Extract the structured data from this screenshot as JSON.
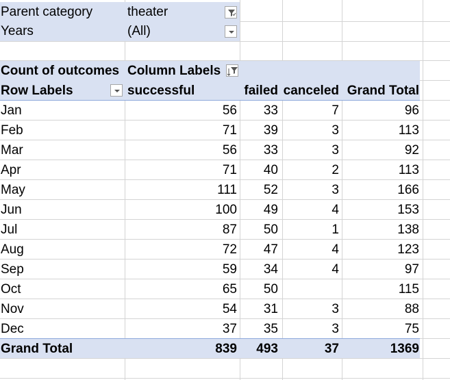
{
  "filters": [
    {
      "label": "Parent category",
      "value": "theater",
      "icon": "filter-applied-icon"
    },
    {
      "label": "Years",
      "value": "(All)",
      "icon": "dropdown-icon"
    }
  ],
  "pivot": {
    "corner_label": "Count of outcomes",
    "column_labels": "Column Labels",
    "row_labels": "Row Labels",
    "columns": [
      "successful",
      "failed",
      "canceled",
      "Grand Total"
    ],
    "rows": [
      {
        "month": "Jan",
        "values": [
          "56",
          "33",
          "7",
          "96"
        ]
      },
      {
        "month": "Feb",
        "values": [
          "71",
          "39",
          "3",
          "113"
        ]
      },
      {
        "month": "Mar",
        "values": [
          "56",
          "33",
          "3",
          "92"
        ]
      },
      {
        "month": "Apr",
        "values": [
          "71",
          "40",
          "2",
          "113"
        ]
      },
      {
        "month": "May",
        "values": [
          "111",
          "52",
          "3",
          "166"
        ]
      },
      {
        "month": "Jun",
        "values": [
          "100",
          "49",
          "4",
          "153"
        ]
      },
      {
        "month": "Jul",
        "values": [
          "87",
          "50",
          "1",
          "138"
        ]
      },
      {
        "month": "Aug",
        "values": [
          "72",
          "47",
          "4",
          "123"
        ]
      },
      {
        "month": "Sep",
        "values": [
          "59",
          "34",
          "4",
          "97"
        ]
      },
      {
        "month": "Oct",
        "values": [
          "65",
          "50",
          "",
          "115"
        ]
      },
      {
        "month": "Nov",
        "values": [
          "54",
          "31",
          "3",
          "88"
        ]
      },
      {
        "month": "Dec",
        "values": [
          "37",
          "35",
          "3",
          "75"
        ]
      }
    ],
    "grand_total": {
      "label": "Grand Total",
      "values": [
        "839",
        "493",
        "37",
        "1369"
      ]
    }
  },
  "colors": {
    "header_band": "#d9e1f2",
    "gridline": "#d4d4d4",
    "accent_line": "#8ea9db"
  }
}
